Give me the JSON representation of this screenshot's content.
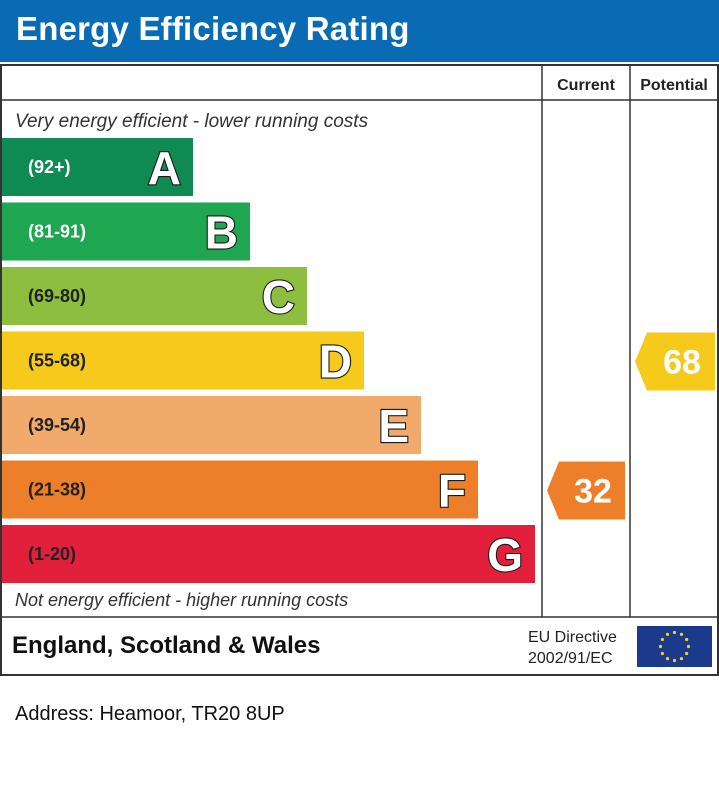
{
  "header": {
    "title": "Energy Efficiency Rating"
  },
  "columns": {
    "current": "Current",
    "potential": "Potential"
  },
  "notes": {
    "top": "Very energy efficient - lower running costs",
    "bottom": "Not energy efficient - higher running costs"
  },
  "footer": {
    "region": "England, Scotland & Wales",
    "directive_line1": "EU Directive",
    "directive_line2": "2002/91/EC"
  },
  "address": "Address: Heamoor, TR20 8UP",
  "chart_data": {
    "type": "bar",
    "bands": [
      {
        "letter": "A",
        "range": "(92+)",
        "min": 92,
        "max": 100,
        "color": "#0f8a52"
      },
      {
        "letter": "B",
        "range": "(81-91)",
        "min": 81,
        "max": 91,
        "color": "#1ea650"
      },
      {
        "letter": "C",
        "range": "(69-80)",
        "min": 69,
        "max": 80,
        "color": "#8dbe40"
      },
      {
        "letter": "D",
        "range": "(55-68)",
        "min": 55,
        "max": 68,
        "color": "#f5ca1a"
      },
      {
        "letter": "E",
        "range": "(39-54)",
        "min": 39,
        "max": 54,
        "color": "#f2a96c"
      },
      {
        "letter": "F",
        "range": "(21-38)",
        "min": 21,
        "max": 38,
        "color": "#ee7f2a"
      },
      {
        "letter": "G",
        "range": "(1-20)",
        "min": 1,
        "max": 20,
        "color": "#e2203c"
      }
    ],
    "current": {
      "value": 32,
      "band": "F",
      "color": "#ee7f2a"
    },
    "potential": {
      "value": 68,
      "band": "D",
      "color": "#f5ca1a"
    }
  }
}
